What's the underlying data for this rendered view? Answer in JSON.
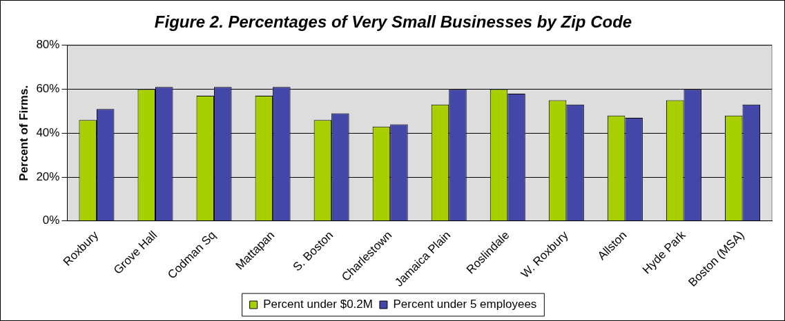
{
  "chart_data": {
    "type": "bar",
    "title": "Figure 2. Percentages of Very Small Businesses by Zip Code",
    "ylabel": "Percent of Firms.",
    "categories": [
      "Roxbury",
      "Grove Hall",
      "Codman Sq",
      "Mattapan",
      "S. Boston",
      "Charlestown",
      "Jamaica Plain",
      "Roslindale",
      "W. Roxbury",
      "Allston",
      "Hyde Park",
      "Boston (MSA)"
    ],
    "series": [
      {
        "name": "Percent under $0.2M",
        "color": "#a8d000",
        "values": [
          46,
          60,
          57,
          57,
          46,
          43,
          53,
          60,
          55,
          48,
          55,
          48
        ]
      },
      {
        "name": "Percent under 5 employees",
        "color": "#4347a8",
        "values": [
          51,
          61,
          61,
          61,
          49,
          44,
          60,
          58,
          53,
          47,
          60,
          53
        ]
      }
    ],
    "ylim": [
      0,
      80
    ],
    "yticks": [
      {
        "value": 0,
        "label": "0%"
      },
      {
        "value": 20,
        "label": "20%"
      },
      {
        "value": 40,
        "label": "40%"
      },
      {
        "value": 60,
        "label": "60%"
      },
      {
        "value": 80,
        "label": "80%"
      }
    ],
    "grid": "y",
    "legend": "bottom"
  }
}
